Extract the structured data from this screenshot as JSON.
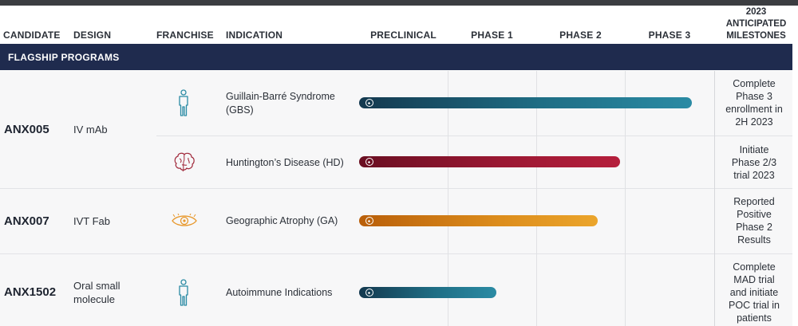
{
  "header": {
    "candidate": "CANDIDATE",
    "design": "DESIGN",
    "franchise": "FRANCHISE",
    "indication": "INDICATION",
    "preclinical": "PRECLINICAL",
    "phase1": "PHASE 1",
    "phase2": "PHASE 2",
    "phase3": "PHASE 3",
    "milestones": [
      "2023",
      "ANTICIPATED",
      "MILESTONES"
    ]
  },
  "section_title": "FLAGSHIP PROGRAMS",
  "colors": {
    "section_bg": "#1f2b4e",
    "teal": "#2b8ba4",
    "red": "#b51f3c",
    "orange": "#eba52c"
  },
  "chart_data": {
    "type": "bar",
    "stages": [
      "PRECLINICAL",
      "PHASE 1",
      "PHASE 2",
      "PHASE 3"
    ],
    "scale": [
      0,
      4
    ],
    "rows": [
      {
        "candidate": "ANX005",
        "design": "IV mAb",
        "franchise_icon": "person-icon",
        "indication": [
          "Guillain-Barré Syndrome",
          "(GBS)"
        ],
        "progress": 3.73,
        "color": "teal",
        "milestone": [
          "Complete",
          "Phase 3",
          "enrollment in",
          "2H 2023"
        ]
      },
      {
        "candidate": "",
        "design": "",
        "franchise_icon": "brain-icon",
        "indication": [
          "Huntington’s Disease (HD)"
        ],
        "progress": 2.92,
        "color": "red",
        "milestone": [
          "Initiate",
          "Phase 2/3",
          "trial 2023"
        ]
      },
      {
        "candidate": "ANX007",
        "design": "IVT Fab",
        "franchise_icon": "eye-icon",
        "indication": [
          "Geographic Atrophy (GA)"
        ],
        "progress": 2.67,
        "color": "orange",
        "milestone": [
          "Reported",
          "Positive",
          "Phase 2",
          "Results"
        ]
      },
      {
        "candidate": "ANX1502",
        "design": "Oral small molecule",
        "design_lines": [
          "Oral small",
          "molecule"
        ],
        "franchise_icon": "person-icon",
        "indication": [
          "Autoimmune Indications"
        ],
        "progress": 1.52,
        "color": "teal",
        "milestone": [
          "Complete",
          "MAD trial",
          "and initiate",
          "POC trial in",
          "patients"
        ]
      }
    ]
  }
}
